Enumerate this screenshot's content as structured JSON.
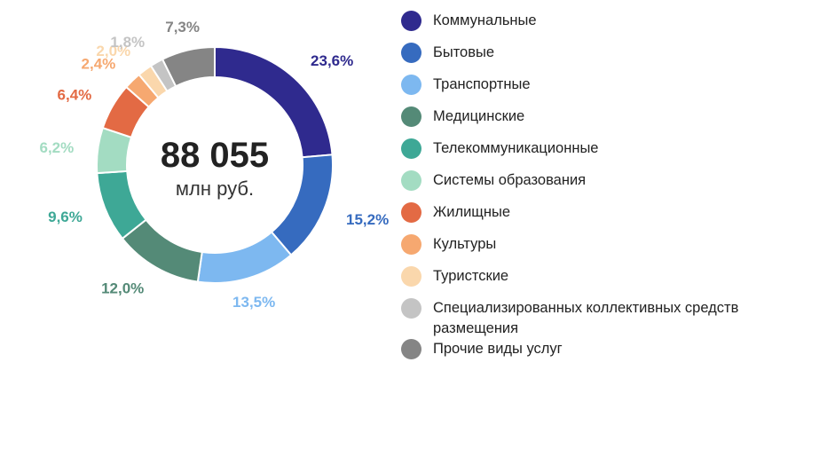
{
  "chart_data": {
    "type": "pie",
    "center_value": "88 055",
    "center_unit": "млн руб.",
    "series": [
      {
        "name": "Коммунальные",
        "value": 23.6,
        "label": "23,6%",
        "color": "#2f2a8e"
      },
      {
        "name": "Бытовые",
        "value": 15.2,
        "label": "15,2%",
        "color": "#366bbf"
      },
      {
        "name": "Транспортные",
        "value": 13.5,
        "label": "13,5%",
        "color": "#7db8f0"
      },
      {
        "name": "Медицинские",
        "value": 12.0,
        "label": "12,0%",
        "color": "#548a77"
      },
      {
        "name": "Телекоммуникационные",
        "value": 9.6,
        "label": "9,6%",
        "color": "#3ea896"
      },
      {
        "name": "Системы образования",
        "value": 6.2,
        "label": "6,2%",
        "color": "#a3dcc2"
      },
      {
        "name": "Жилищные",
        "value": 6.4,
        "label": "6,4%",
        "color": "#e36a44"
      },
      {
        "name": "Культуры",
        "value": 2.4,
        "label": "2,4%",
        "color": "#f6a870"
      },
      {
        "name": "Туристские",
        "value": 2.0,
        "label": "2,0%",
        "color": "#fad7ac"
      },
      {
        "name": "Специализированных коллективных средств размещения",
        "value": 1.8,
        "label": "1,8%",
        "color": "#c4c4c4"
      },
      {
        "name": "Прочие виды услуг",
        "value": 7.3,
        "label": "7,3%",
        "color": "#858585"
      }
    ]
  }
}
